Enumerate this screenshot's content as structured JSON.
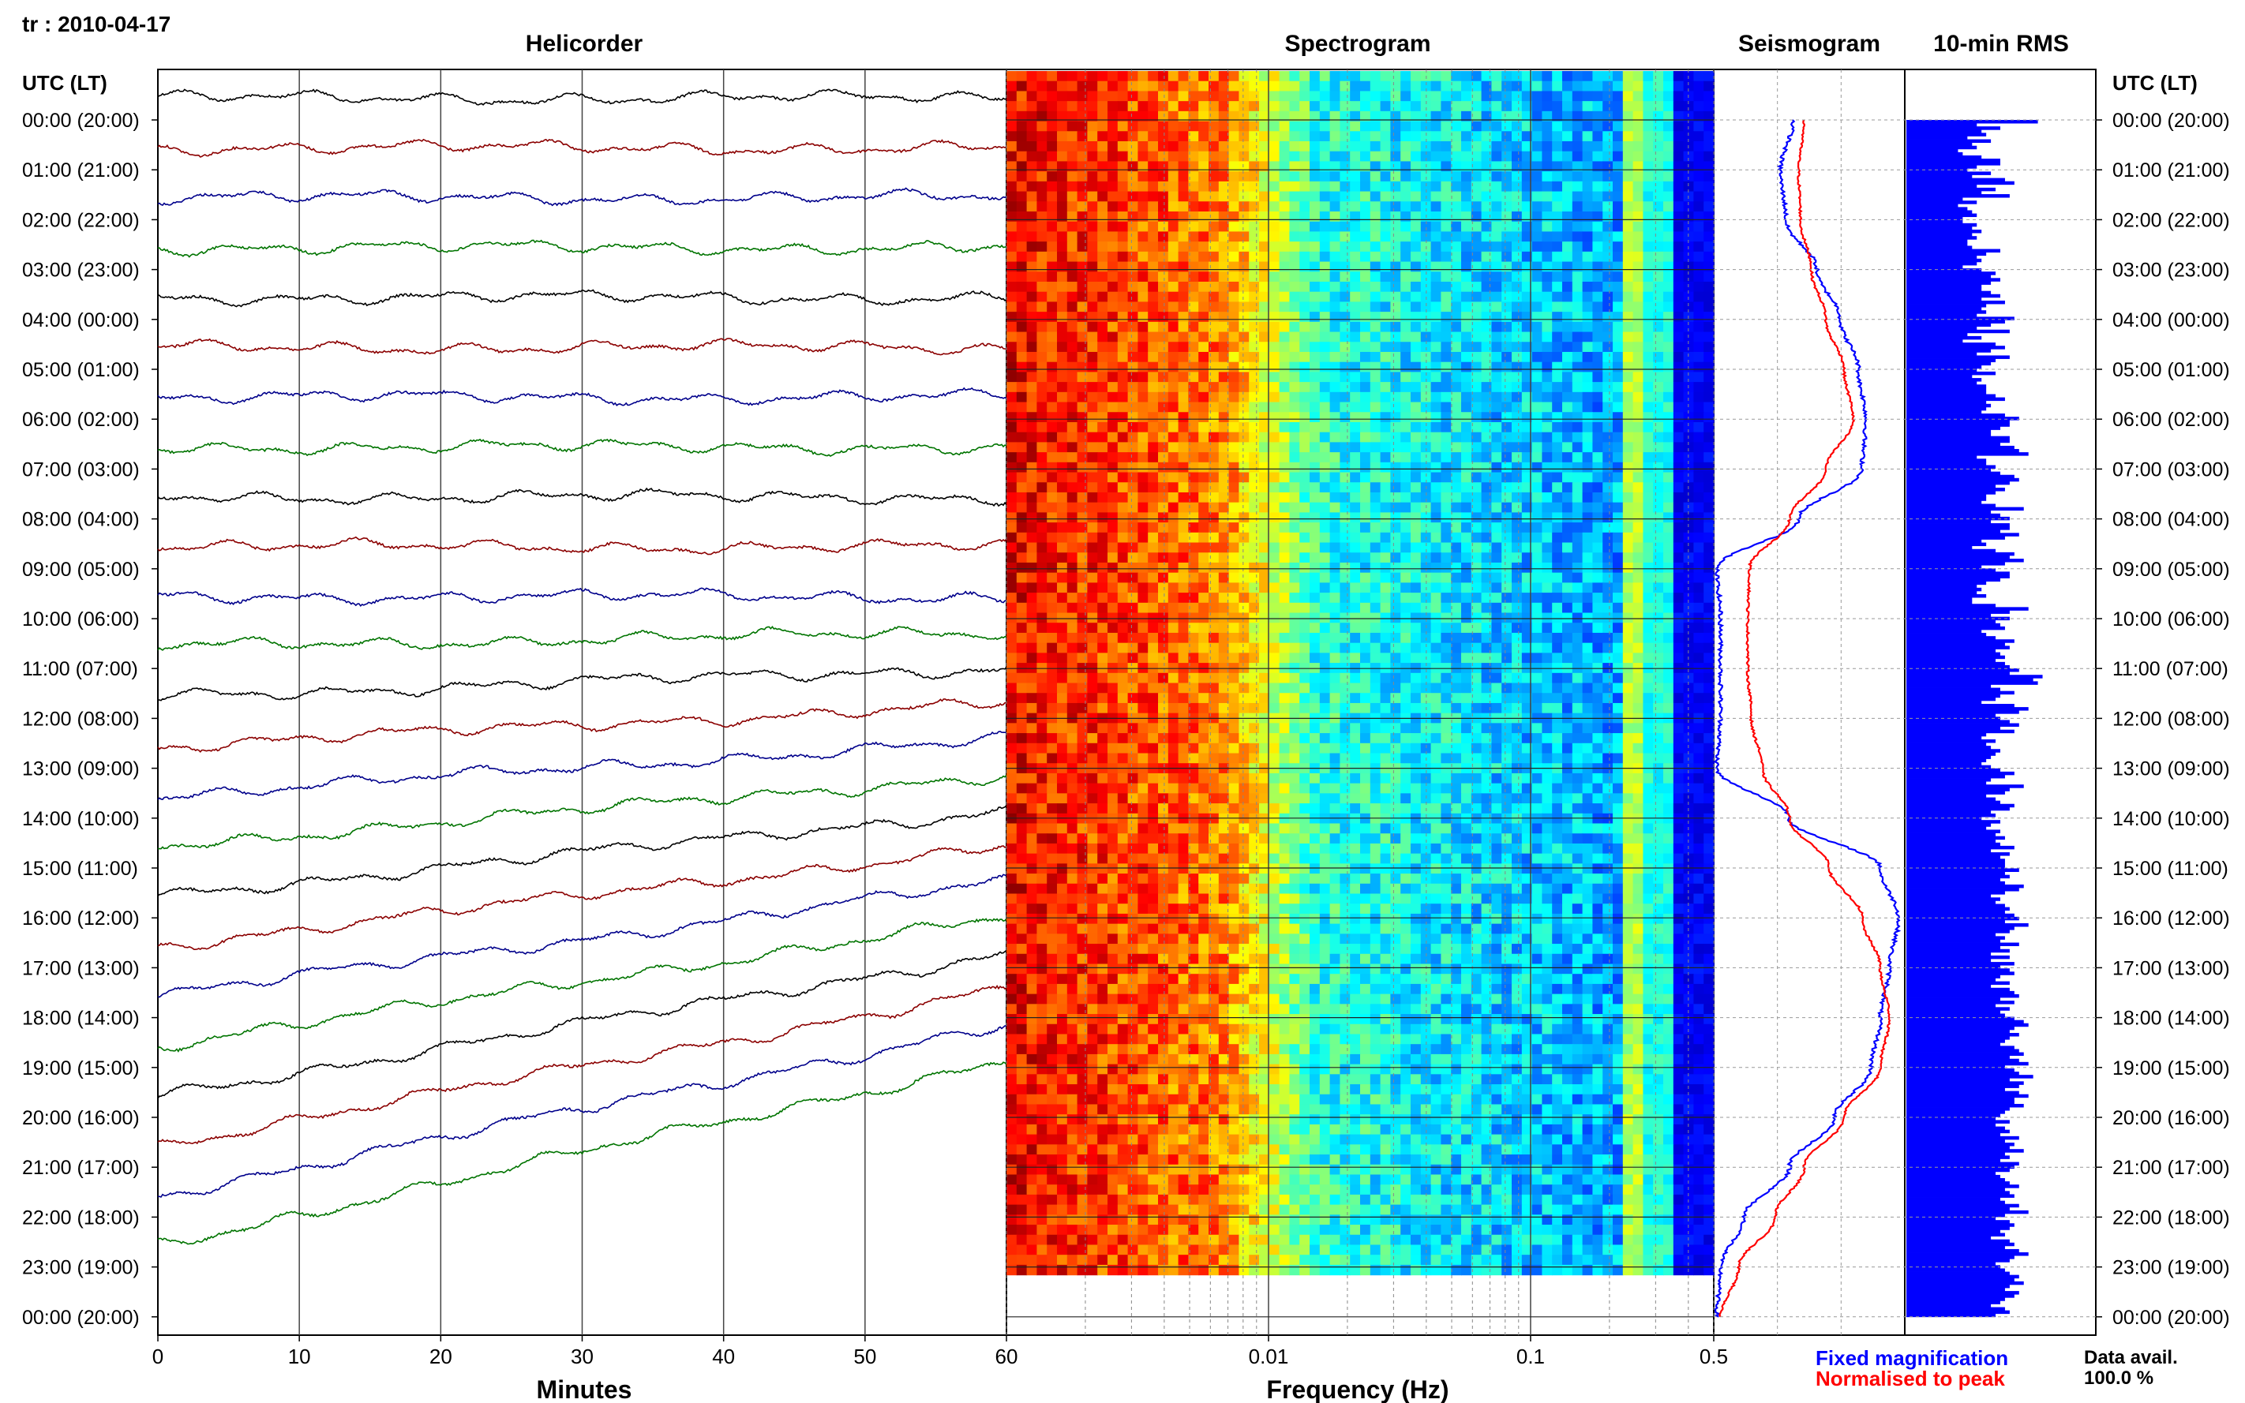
{
  "header": {
    "station_date": "tr : 2010-04-17",
    "titles": {
      "helicorder": "Helicorder",
      "spectrogram": "Spectrogram",
      "seismogram": "Seismogram",
      "rms": "10-min RMS"
    },
    "time_axis_label": "UTC (LT)"
  },
  "footer": {
    "legend": {
      "fixed": "Fixed magnification",
      "normalised": "Normalised to peak"
    },
    "data_avail_label": "Data avail.",
    "data_avail_value": "100.0 %"
  },
  "colors": {
    "helicorder_cycle": [
      "#000000",
      "#8b0000",
      "#00008b",
      "#007400"
    ],
    "fixed": "#0000ff",
    "normalised": "#ff0000",
    "rms_bar": "#0000ff"
  },
  "chart_data": [
    {
      "type": "line",
      "title": "Helicorder",
      "xlabel": "Minutes",
      "xlim": [
        0,
        60
      ],
      "xticks": [
        0,
        10,
        20,
        30,
        40,
        50,
        60
      ],
      "row_labels": [
        "00:00 (20:00)",
        "01:00 (21:00)",
        "02:00 (22:00)",
        "03:00 (23:00)",
        "04:00 (00:00)",
        "05:00 (01:00)",
        "06:00 (02:00)",
        "07:00 (03:00)",
        "08:00 (04:00)",
        "09:00 (05:00)",
        "10:00 (06:00)",
        "11:00 (07:00)",
        "12:00 (08:00)",
        "13:00 (09:00)",
        "14:00 (10:00)",
        "15:00 (11:00)",
        "16:00 (12:00)",
        "17:00 (13:00)",
        "18:00 (14:00)",
        "19:00 (15:00)",
        "20:00 (16:00)",
        "21:00 (17:00)",
        "22:00 (18:00)",
        "23:00 (19:00)",
        "00:00 (20:00)"
      ],
      "grid": true
    },
    {
      "type": "heatmap",
      "title": "Spectrogram",
      "xlabel": "Frequency (Hz)",
      "xscale": "log",
      "xlim": [
        0.001,
        0.5
      ],
      "xtick_labels": [
        "0.01",
        "0.1",
        "0.5"
      ],
      "rows": 24,
      "colormap": "jet"
    },
    {
      "type": "line",
      "title": "Seismogram",
      "xlabel": "0.5",
      "series": [
        {
          "name": "Fixed magnification",
          "values": [
            0.42,
            0.35,
            0.38,
            0.55,
            0.68,
            0.78,
            0.82,
            0.8,
            0.45,
            0.0,
            0.02,
            0.02,
            0.02,
            0.0,
            0.4,
            0.9,
            1.0,
            0.95,
            0.9,
            0.85,
            0.65,
            0.4,
            0.15,
            0.02,
            0.0
          ]
        },
        {
          "name": "Normalised to peak",
          "values": [
            0.48,
            0.45,
            0.46,
            0.52,
            0.6,
            0.7,
            0.75,
            0.6,
            0.4,
            0.18,
            0.17,
            0.17,
            0.19,
            0.25,
            0.4,
            0.62,
            0.8,
            0.9,
            0.95,
            0.9,
            0.7,
            0.48,
            0.32,
            0.12,
            0.02
          ]
        }
      ]
    },
    {
      "type": "bar",
      "title": "10-min RMS",
      "orientation": "horizontal",
      "values": [
        28,
        15,
        20,
        16,
        17,
        13,
        18,
        14,
        15,
        11,
        12,
        16,
        20,
        20,
        15,
        13,
        18,
        14,
        21,
        23,
        15,
        19,
        16,
        22,
        12,
        15,
        11,
        13,
        14,
        15,
        12,
        12,
        15,
        14,
        16,
        14,
        15,
        13,
        13,
        14,
        20,
        17,
        15,
        16,
        15,
        12,
        16,
        19,
        18,
        20,
        18,
        16,
        16,
        18,
        20,
        16,
        21,
        17,
        16,
        17,
        15,
        23,
        21,
        18,
        15,
        22,
        13,
        16,
        12,
        19,
        21,
        18,
        15,
        22,
        19,
        18,
        16,
        15,
        19,
        14,
        16,
        15,
        17,
        17,
        17,
        19,
        21,
        17,
        18,
        17,
        16,
        21,
        24,
        22,
        22,
        20,
        18,
        18,
        22,
        22,
        20,
        23,
        24,
        26,
        15,
        17,
        17,
        19,
        18,
        20,
        23,
        24,
        22,
        19,
        21,
        19,
        17,
        17,
        16,
        19,
        25,
        18,
        20,
        22,
        18,
        22,
        22,
        20,
        24,
        21,
        16,
        17,
        14,
        19,
        23,
        22,
        25,
        21,
        16,
        19,
        22,
        22,
        20,
        17,
        15,
        16,
        15,
        17,
        14,
        14,
        19,
        26,
        22,
        18,
        22,
        19,
        20,
        21,
        16,
        17,
        19,
        23,
        21,
        22,
        19,
        20,
        21,
        19,
        21,
        22,
        24,
        22,
        29,
        27,
        28,
        18,
        20,
        23,
        20,
        19,
        16,
        23,
        26,
        24,
        19,
        20,
        22,
        24,
        20,
        23,
        17,
        16,
        19,
        17,
        18,
        20,
        19,
        18,
        17,
        16,
        18,
        20,
        23,
        21,
        18,
        17,
        25,
        22,
        21,
        17,
        19,
        20,
        23,
        22,
        18,
        19,
        16,
        20,
        18,
        17,
        20,
        19,
        21,
        19,
        20,
        23,
        18,
        22,
        20,
        21,
        21,
        21,
        24,
        21,
        22,
        20,
        21,
        25,
        24,
        21,
        18,
        20,
        19,
        21,
        22,
        21,
        23,
        24,
        21,
        26,
        23,
        22,
        19,
        21,
        20,
        24,
        20,
        22,
        18,
        22,
        18,
        23,
        20,
        22,
        23,
        20,
        19,
        22,
        18,
        22,
        23,
        24,
        20,
        23,
        19,
        22,
        20,
        21,
        23,
        25,
        26,
        23,
        22,
        24,
        22,
        21,
        20,
        23,
        24,
        25,
        22,
        24,
        26,
        21,
        23,
        24,
        27,
        22,
        25,
        24,
        21,
        24,
        26,
        23,
        23,
        25,
        22,
        21,
        20,
        19,
        22,
        19,
        21,
        22,
        20,
        24,
        21,
        23,
        22,
        25,
        21,
        22,
        20,
        24,
        23,
        22,
        19,
        20,
        21,
        22,
        24,
        21,
        22,
        23,
        20,
        21,
        24,
        22,
        26,
        21,
        19,
        22,
        23,
        22,
        20,
        21,
        18,
        22,
        23,
        21,
        24,
        26,
        23,
        22,
        19,
        20,
        21,
        22,
        24,
        23,
        25,
        22,
        21,
        24,
        23,
        21,
        20,
        18,
        21,
        22,
        19
      ]
    }
  ]
}
